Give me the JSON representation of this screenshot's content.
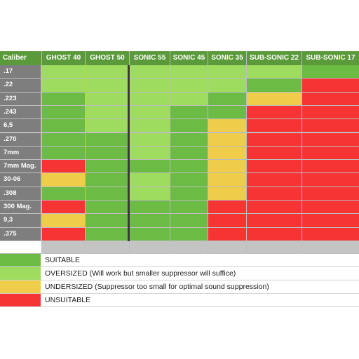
{
  "colors": {
    "suitable": "#6bbb45",
    "oversized": "#9edc5f",
    "undersized": "#efcd4a",
    "unsuitable": "#f73434",
    "header": "#5a9a3a",
    "row_label": "#7e7e7e"
  },
  "table": {
    "corner_label": "Caliber",
    "columns": [
      "GHOST 40",
      "GHOST 50",
      "SONIC 55",
      "SONIC 45",
      "SONIC 35",
      "SUB-SONIC 22",
      "SUB-SONIC 17"
    ],
    "rows": [
      {
        "caliber": ".17",
        "cells": [
          "O",
          "O",
          "O",
          "O",
          "O",
          "O",
          "S"
        ]
      },
      {
        "caliber": ".22",
        "cells": [
          "O",
          "O",
          "O",
          "O",
          "O",
          "S",
          "X"
        ]
      },
      {
        "caliber": ".223",
        "cells": [
          "S",
          "O",
          "O",
          "O",
          "S",
          "U",
          "X"
        ]
      },
      {
        "caliber": ".243",
        "cells": [
          "S",
          "O",
          "O",
          "S",
          "S",
          "X",
          "X"
        ]
      },
      {
        "caliber": "6,5",
        "cells": [
          "S",
          "O",
          "O",
          "S",
          "U",
          "X",
          "X"
        ]
      },
      {
        "caliber": ".270",
        "cells": [
          "S",
          "S",
          "O",
          "S",
          "U",
          "X",
          "X"
        ]
      },
      {
        "caliber": "7mm",
        "cells": [
          "S",
          "S",
          "O",
          "S",
          "U",
          "X",
          "X"
        ]
      },
      {
        "caliber": "7mm Mag.",
        "cells": [
          "X",
          "S",
          "S",
          "S",
          "U",
          "X",
          "X"
        ]
      },
      {
        "caliber": "30-06",
        "cells": [
          "U",
          "S",
          "O",
          "S",
          "U",
          "X",
          "X"
        ]
      },
      {
        "caliber": ".308",
        "cells": [
          "S",
          "S",
          "O",
          "S",
          "U",
          "X",
          "X"
        ]
      },
      {
        "caliber": "300 Mag.",
        "cells": [
          "X",
          "S",
          "S",
          "S",
          "X",
          "X",
          "X"
        ]
      },
      {
        "caliber": "9,3",
        "cells": [
          "U",
          "S",
          "S",
          "S",
          "X",
          "X",
          "X"
        ]
      },
      {
        "caliber": ".375",
        "cells": [
          "X",
          "S",
          "S",
          "S",
          "X",
          "X",
          "X"
        ]
      }
    ]
  },
  "legend": [
    {
      "key": "S",
      "text": "SUITABLE"
    },
    {
      "key": "O",
      "text": "OVERSIZED (Will work but smaller suppressor will suffice)"
    },
    {
      "key": "U",
      "text": "UNDERSIZED (Suppressor too small for optimal sound suppression)"
    },
    {
      "key": "X",
      "text": "UNSUITABLE"
    }
  ]
}
